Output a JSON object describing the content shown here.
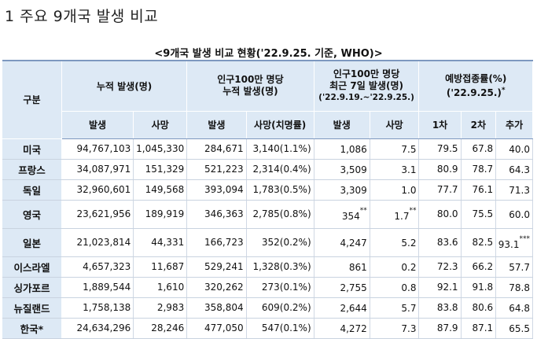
{
  "heading": "1  주요 9개국 발생 비교",
  "caption": "<9개국 발생 비교 현황('22.9.25. 기준, WHO)>",
  "headers": {
    "category": "구분",
    "cumulative": "누적 발생(명)",
    "per_million_line1": "인구100만 명당",
    "per_million_line2": "누적 발생(명)",
    "recent_line1": "인구100만 명당",
    "recent_line2": "최근 7일 발생(명)",
    "recent_line3": "('22.9.19.~'22.9.25.)",
    "vaccine_line1": "예방접종률(%)",
    "vaccine_line2": "('22.9.25.)",
    "vaccine_star": "*",
    "sub": {
      "cum_cases": "발생",
      "cum_deaths": "사망",
      "pm_cases": "발생",
      "pm_deaths": "사망(치명률)",
      "r_cases": "발생",
      "r_deaths": "사망",
      "dose1": "1차",
      "dose2": "2차",
      "booster": "추가"
    }
  },
  "rows": [
    {
      "country": "미국",
      "cum_cases": "94,767,103",
      "cum_deaths": "1,045,330",
      "pm_cases": "284,671",
      "pm_deaths": "3,140(1.1%)",
      "r_cases": "1,086",
      "r_cases_star": "",
      "r_deaths": "7.5",
      "r_deaths_star": "",
      "dose1": "79.5",
      "dose2": "67.8",
      "booster": "40.0",
      "booster_star": ""
    },
    {
      "country": "프랑스",
      "cum_cases": "34,087,971",
      "cum_deaths": "151,329",
      "pm_cases": "521,223",
      "pm_deaths": "2,314(0.4%)",
      "r_cases": "3,509",
      "r_cases_star": "",
      "r_deaths": "3.1",
      "r_deaths_star": "",
      "dose1": "80.9",
      "dose2": "78.7",
      "booster": "64.3",
      "booster_star": ""
    },
    {
      "country": "독일",
      "cum_cases": "32,960,601",
      "cum_deaths": "149,568",
      "pm_cases": "393,094",
      "pm_deaths": "1,783(0.5%)",
      "r_cases": "3,309",
      "r_cases_star": "",
      "r_deaths": "1.0",
      "r_deaths_star": "",
      "dose1": "77.7",
      "dose2": "76.1",
      "booster": "71.3",
      "booster_star": ""
    },
    {
      "country": "영국",
      "cum_cases": "23,621,956",
      "cum_deaths": "189,919",
      "pm_cases": "346,363",
      "pm_deaths": "2,785(0.8%)",
      "r_cases": "354",
      "r_cases_star": "**",
      "r_deaths": "1.7",
      "r_deaths_star": "**",
      "dose1": "80.0",
      "dose2": "75.5",
      "booster": "60.0",
      "booster_star": ""
    },
    {
      "country": "일본",
      "cum_cases": "21,023,814",
      "cum_deaths": "44,331",
      "pm_cases": "166,723",
      "pm_deaths": "352(0.2%)",
      "r_cases": "4,247",
      "r_cases_star": "",
      "r_deaths": "5.2",
      "r_deaths_star": "",
      "dose1": "83.6",
      "dose2": "82.5",
      "booster": "93.1",
      "booster_star": "***"
    },
    {
      "country": "이스라엘",
      "cum_cases": "4,657,323",
      "cum_deaths": "11,687",
      "pm_cases": "529,241",
      "pm_deaths": "1,328(0.3%)",
      "r_cases": "861",
      "r_cases_star": "",
      "r_deaths": "0.2",
      "r_deaths_star": "",
      "dose1": "72.3",
      "dose2": "66.2",
      "booster": "57.7",
      "booster_star": ""
    },
    {
      "country": "싱가포르",
      "cum_cases": "1,889,544",
      "cum_deaths": "1,610",
      "pm_cases": "320,262",
      "pm_deaths": "273(0.1%)",
      "r_cases": "2,755",
      "r_cases_star": "",
      "r_deaths": "0.8",
      "r_deaths_star": "",
      "dose1": "92.1",
      "dose2": "91.8",
      "booster": "78.8",
      "booster_star": ""
    },
    {
      "country": "뉴질랜드",
      "cum_cases": "1,758,138",
      "cum_deaths": "2,983",
      "pm_cases": "358,804",
      "pm_deaths": "609(0.2%)",
      "r_cases": "2,644",
      "r_cases_star": "",
      "r_deaths": "5.7",
      "r_deaths_star": "",
      "dose1": "83.8",
      "dose2": "80.6",
      "booster": "64.8",
      "booster_star": ""
    },
    {
      "country": "한국*",
      "cum_cases": "24,634,296",
      "cum_deaths": "28,246",
      "pm_cases": "477,050",
      "pm_deaths": "547(0.1%)",
      "r_cases": "4,272",
      "r_cases_star": "",
      "r_deaths": "7.3",
      "r_deaths_star": "",
      "dose1": "87.9",
      "dose2": "87.1",
      "booster": "65.5",
      "booster_star": ""
    }
  ]
}
